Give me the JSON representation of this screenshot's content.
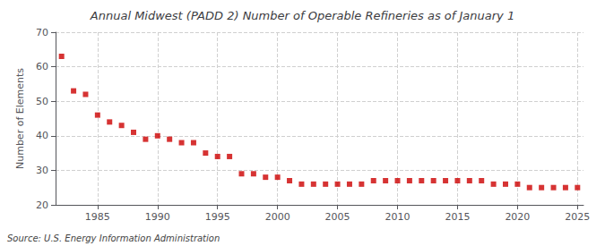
{
  "chart_data": {
    "type": "scatter",
    "title": "Annual Midwest (PADD 2) Number of Operable Refineries as of January 1",
    "ylabel": "Number of Elements",
    "annotations": [
      "Source: U.S. Energy Information Administration"
    ],
    "x": [
      1982,
      1983,
      1984,
      1985,
      1986,
      1987,
      1988,
      1989,
      1990,
      1991,
      1992,
      1993,
      1994,
      1995,
      1996,
      1997,
      1998,
      1999,
      2000,
      2001,
      2002,
      2003,
      2004,
      2005,
      2006,
      2007,
      2008,
      2009,
      2010,
      2011,
      2012,
      2013,
      2014,
      2015,
      2016,
      2017,
      2018,
      2019,
      2020,
      2021,
      2022,
      2023,
      2024,
      2025
    ],
    "values": [
      63,
      53,
      52,
      46,
      44,
      43,
      41,
      39,
      40,
      39,
      38,
      38,
      35,
      34,
      34,
      29,
      29,
      28,
      28,
      27,
      26,
      26,
      26,
      26,
      26,
      26,
      27,
      27,
      27,
      27,
      27,
      27,
      27,
      27,
      27,
      27,
      26,
      26,
      26,
      25,
      25,
      25,
      25,
      25
    ],
    "color": "#cc0000",
    "marker": "square",
    "xlim": [
      1981.5,
      2025.5
    ],
    "xticks": [
      1985,
      1990,
      1995,
      2000,
      2005,
      2010,
      2015,
      2020,
      2025
    ],
    "ylim": [
      20,
      70
    ],
    "yticks": [
      20,
      30,
      40,
      50,
      60,
      70
    ],
    "grid": true
  }
}
